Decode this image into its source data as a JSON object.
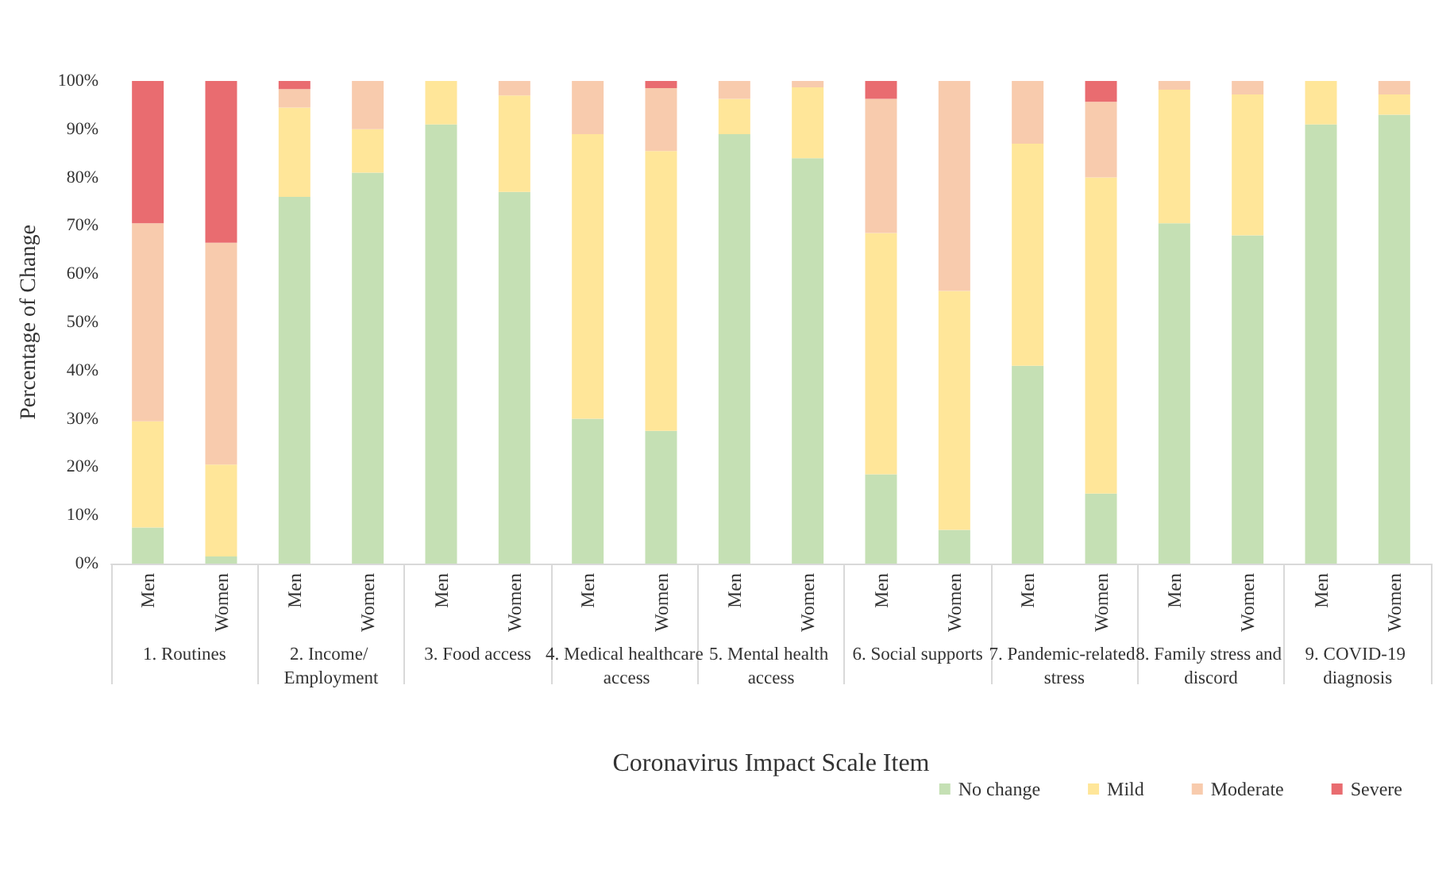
{
  "chart_data": {
    "type": "bar",
    "stacked": true,
    "xlabel": "Coronavirus Impact Scale Item",
    "ylabel": "Percentage of Change",
    "categories": [
      "Men",
      "Women",
      "Men",
      "Women",
      "Men",
      "Women",
      "Men",
      "Women",
      "Men",
      "Women",
      "Men",
      "Women",
      "Men",
      "Women",
      "Men",
      "Women",
      "Men",
      "Women"
    ],
    "annotations": [
      "1. Routines",
      "2. Income/ Employment",
      "3. Food access",
      "4. Medical healthcare access",
      "5. Mental health access",
      "6. Social supports",
      "7. Pandemic-related stress",
      "8. Family stress and discord",
      "9. COVID-19 diagnosis"
    ],
    "series": [
      {
        "name": "No change",
        "color": "#c5e0b4",
        "values": [
          7.5,
          1.5,
          76,
          81,
          91,
          77,
          30,
          27.5,
          89,
          84,
          18.5,
          7,
          41,
          14.5,
          70.5,
          68,
          91,
          93
        ]
      },
      {
        "name": "Mild",
        "color": "#ffe699",
        "values": [
          22,
          19,
          18.5,
          9,
          9,
          20,
          59,
          58,
          7.3,
          14.7,
          50,
          49.5,
          46,
          65.5,
          27.7,
          29.2,
          9,
          4.2
        ]
      },
      {
        "name": "Moderate",
        "color": "#f8cbad",
        "values": [
          41,
          46,
          3.8,
          10,
          0,
          3,
          11,
          13,
          3.7,
          1.3,
          27.8,
          43.5,
          13,
          15.7,
          1.8,
          2.8,
          0,
          2.8
        ]
      },
      {
        "name": "Severe",
        "color": "#e96c70",
        "values": [
          29.5,
          33.5,
          1.7,
          0,
          0,
          0,
          0,
          1.5,
          0,
          0,
          3.7,
          0,
          0,
          4.3,
          0,
          0,
          0,
          0
        ]
      }
    ],
    "ylim": [
      0,
      100
    ],
    "yticks": [
      {
        "value": 0,
        "label": "0%"
      },
      {
        "value": 10,
        "label": "10%"
      },
      {
        "value": 20,
        "label": "20%"
      },
      {
        "value": 30,
        "label": "30%"
      },
      {
        "value": 40,
        "label": "40%"
      },
      {
        "value": 50,
        "label": "50%"
      },
      {
        "value": 60,
        "label": "60%"
      },
      {
        "value": 70,
        "label": "70%"
      },
      {
        "value": 80,
        "label": "80%"
      },
      {
        "value": 90,
        "label": "90%"
      },
      {
        "value": 100,
        "label": "100%"
      }
    ],
    "grid": false,
    "legend": "bottom right"
  }
}
